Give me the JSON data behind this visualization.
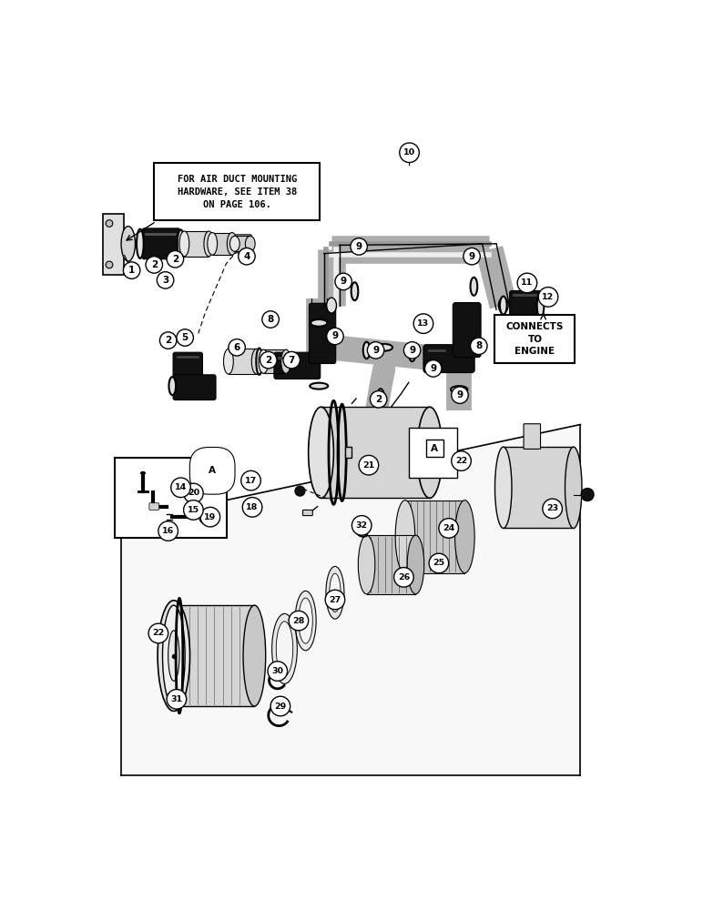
{
  "bg_color": "#ffffff",
  "line_color": "#000000",
  "box1_text": "FOR AIR DUCT MOUNTING\nHARDWARE, SEE ITEM 38\nON PAGE 106.",
  "box2_text": "CONNECTS\nTO\nENGINE"
}
